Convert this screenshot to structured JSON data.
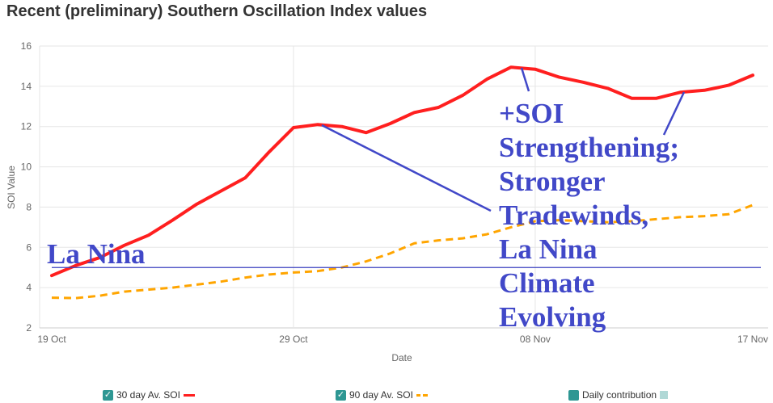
{
  "title": "Recent (preliminary) Southern Oscillation Index values",
  "legend": [
    {
      "label": "30 day Av. SOI",
      "checked": true,
      "color": "#ff1f1f",
      "style": "solid"
    },
    {
      "label": "90 day Av. SOI",
      "checked": true,
      "color": "#ffa500",
      "style": "dashed"
    },
    {
      "label": "Daily contribution",
      "checked": false,
      "color": "#2e9793",
      "swatch": "#b0d8d6"
    }
  ],
  "chart_data": {
    "type": "line",
    "xlabel": "Date",
    "ylabel": "SOI Value",
    "ylim": [
      2,
      16
    ],
    "yticks": [
      "2",
      "4",
      "6",
      "8",
      "10",
      "12",
      "14",
      "16"
    ],
    "xticks": [
      "19 Oct",
      "29 Oct",
      "08 Nov",
      "17 Nov"
    ],
    "grid": true,
    "legend_position": "bottom",
    "x": [
      "19 Oct",
      "20 Oct",
      "21 Oct",
      "22 Oct",
      "23 Oct",
      "24 Oct",
      "25 Oct",
      "26 Oct",
      "27 Oct",
      "28 Oct",
      "29 Oct",
      "30 Oct",
      "31 Oct",
      "01 Nov",
      "02 Nov",
      "03 Nov",
      "04 Nov",
      "05 Nov",
      "06 Nov",
      "07 Nov",
      "08 Nov",
      "09 Nov",
      "10 Nov",
      "11 Nov",
      "12 Nov",
      "13 Nov",
      "14 Nov",
      "15 Nov",
      "16 Nov",
      "17 Nov"
    ],
    "series": [
      {
        "name": "30 day Av. SOI",
        "color": "#ff1f1f",
        "style": "solid",
        "values": [
          4.6,
          5.1,
          5.5,
          6.1,
          6.6,
          7.35,
          8.15,
          8.8,
          9.45,
          10.75,
          11.95,
          12.1,
          12.0,
          11.7,
          12.15,
          12.7,
          12.95,
          13.55,
          14.35,
          14.95,
          14.85,
          14.45,
          14.2,
          13.9,
          13.4,
          13.4,
          13.7,
          13.8,
          14.05,
          14.55
        ]
      },
      {
        "name": "90 day Av. SOI",
        "color": "#ffa500",
        "style": "dashed",
        "values": [
          3.5,
          3.48,
          3.6,
          3.8,
          3.9,
          4.0,
          4.15,
          4.3,
          4.5,
          4.65,
          4.75,
          4.82,
          5.0,
          5.3,
          5.7,
          6.2,
          6.35,
          6.45,
          6.65,
          7.0,
          7.3,
          7.35,
          7.3,
          7.25,
          7.3,
          7.4,
          7.5,
          7.55,
          7.65,
          8.1
        ]
      }
    ],
    "reference_line": {
      "value": 5,
      "color": "#3a3fbf"
    },
    "annotations": {
      "left_label": "La Nina",
      "main_text": [
        "+SOI",
        "Strengthening;",
        "Stronger",
        "Tradewinds,",
        "La Nina",
        "Climate",
        "Evolving"
      ],
      "color": "#4148c8"
    }
  }
}
